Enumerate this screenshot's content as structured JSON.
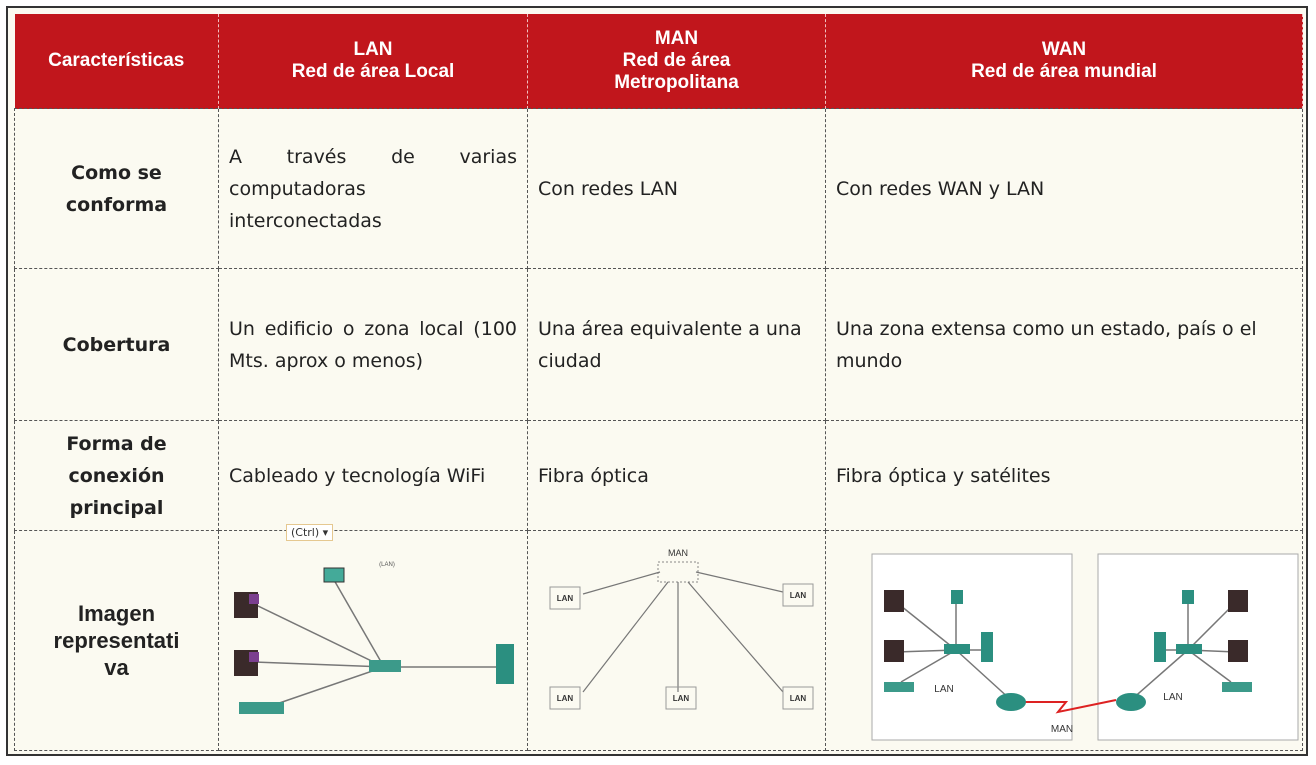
{
  "table": {
    "header": [
      [
        "Características"
      ],
      [
        "LAN",
        "Red de área Local"
      ],
      [
        "MAN",
        "Red de área",
        "Metropolitana"
      ],
      [
        "WAN",
        "Red de área mundial"
      ]
    ],
    "rows": [
      [
        "Como se conforma",
        "A través de varias computadoras interconectadas",
        "Con redes LAN",
        "Con redes WAN y LAN"
      ],
      [
        "Cobertura",
        "Un edificio o zona local (100 Mts. aprox o menos)",
        "Una área equivalente a una ciudad",
        "Una zona extensa como un estado, país o el mundo"
      ],
      [
        "Forma de conexión principal",
        "Cableado y tecnología WiFi",
        "Fibra óptica",
        "Fibra óptica y satélites"
      ],
      [
        "Imagen\nrepresentati\nva"
      ]
    ]
  },
  "diagrams": {
    "lan": {
      "labels": [
        "(LAN)"
      ]
    },
    "man": {
      "title": "MAN",
      "labels": [
        "LAN",
        "LAN",
        "LAN",
        "LAN",
        "LAN"
      ]
    },
    "wan": {
      "labels": [
        "LAN",
        "LAN",
        "MAN"
      ]
    }
  },
  "paste_tag": "(Ctrl)"
}
